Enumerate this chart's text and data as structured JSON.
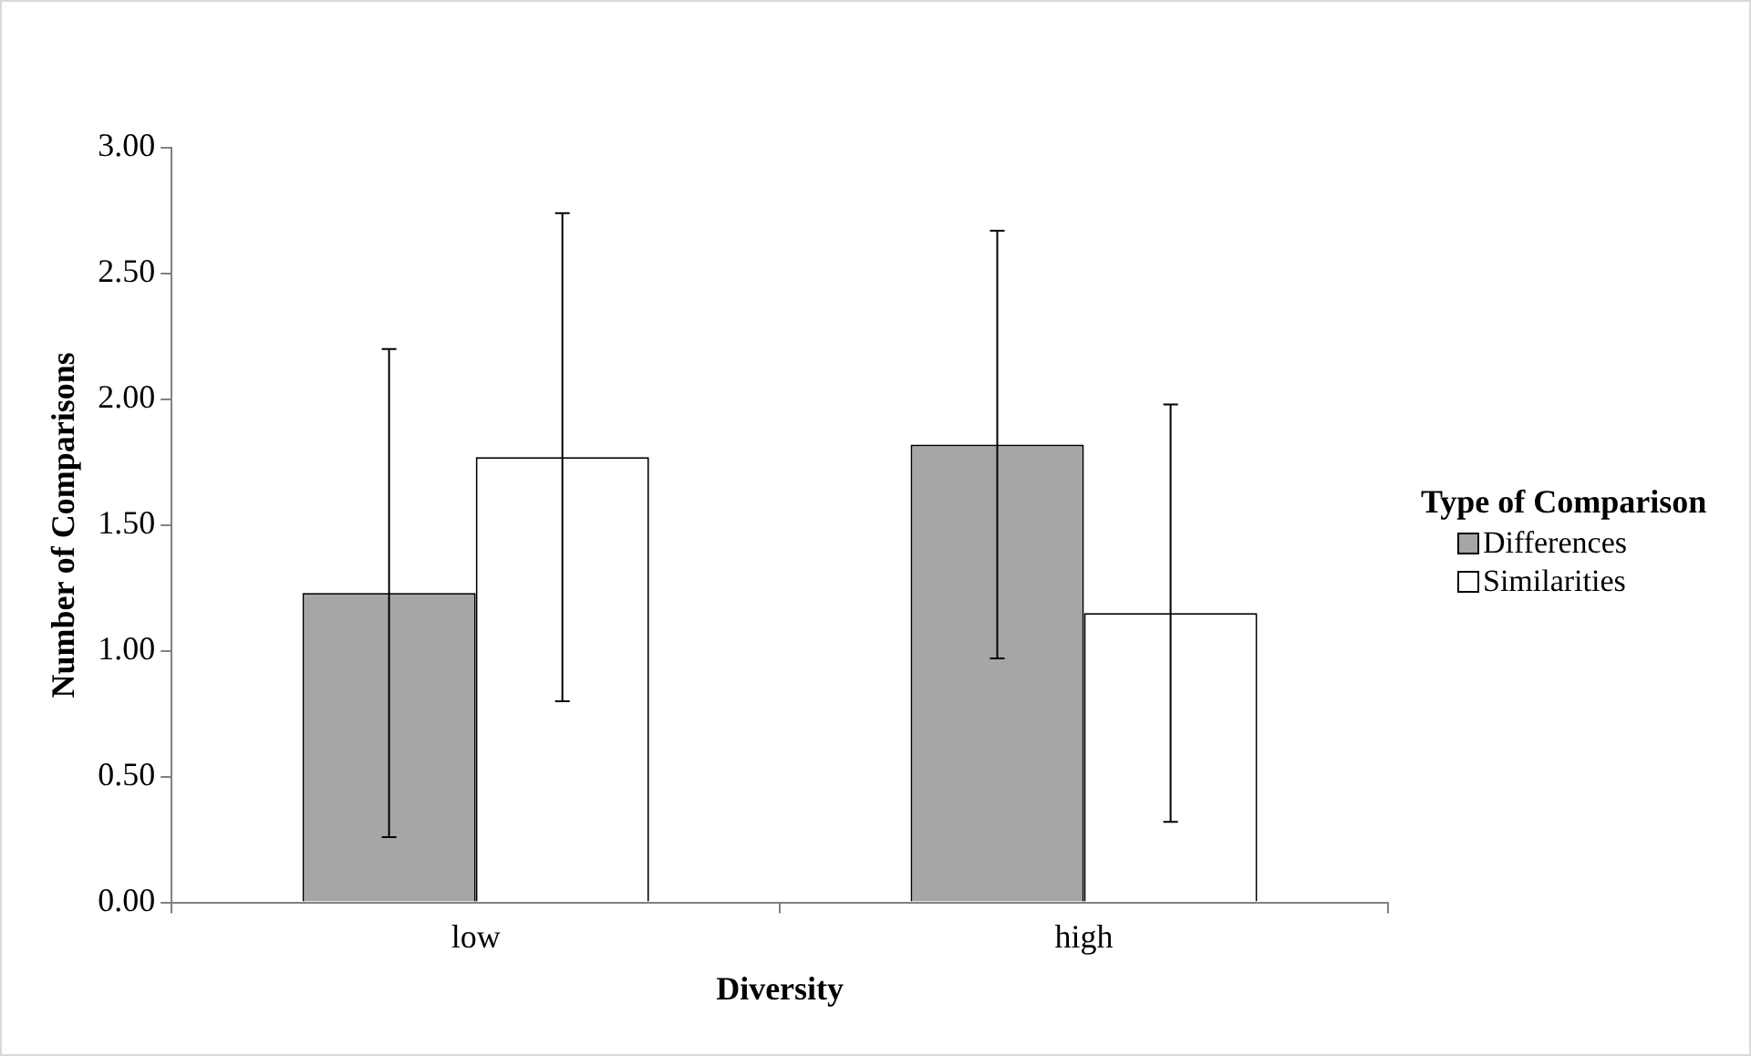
{
  "chart_data": {
    "type": "bar",
    "xlabel": "Diversity",
    "ylabel": "Number of Comparisons",
    "legend_title": "Type of Comparison",
    "categories": [
      "low",
      "high"
    ],
    "series": [
      {
        "name": "Differences",
        "color": "#a6a6a6",
        "values": [
          1.23,
          1.82
        ],
        "errors": [
          0.97,
          0.85
        ]
      },
      {
        "name": "Similarities",
        "color": "#ffffff",
        "values": [
          1.77,
          1.15
        ],
        "errors": [
          0.97,
          0.83
        ]
      }
    ],
    "ylim": [
      0,
      3
    ],
    "yticks": [
      {
        "value": 0,
        "label": "0.00"
      },
      {
        "value": 0.5,
        "label": "0.50"
      },
      {
        "value": 1,
        "label": "1.00"
      },
      {
        "value": 1.5,
        "label": "1.50"
      },
      {
        "value": 2,
        "label": "2.00"
      },
      {
        "value": 2.5,
        "label": "2.50"
      },
      {
        "value": 3,
        "label": "3.00"
      }
    ],
    "grid": false,
    "legend": "right"
  }
}
